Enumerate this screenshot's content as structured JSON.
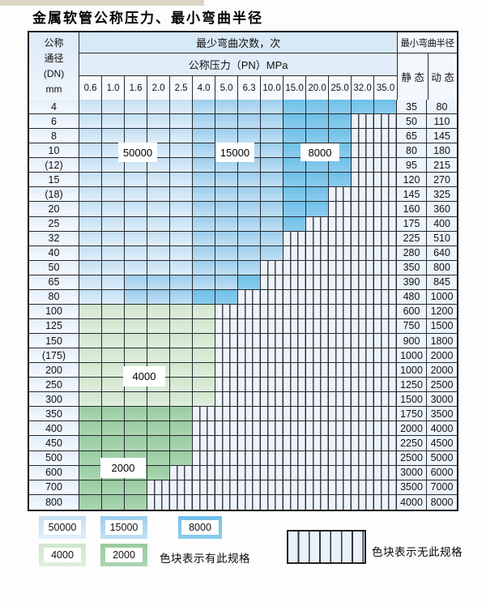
{
  "page": {
    "title": "金属软管公称压力、最小弯曲半径"
  },
  "table": {
    "header": {
      "dn_lines": [
        "公称",
        "通径",
        "(DN)",
        "mm"
      ],
      "bend_cycles": "最少弯曲次数，次",
      "pressure": "公称压力（PN）MPa",
      "pressure_values": [
        "0.6",
        "1.0",
        "1.6",
        "2.0",
        "2.5",
        "4.0",
        "5.0",
        "6.3",
        "10.0",
        "15.0",
        "20.0",
        "25.0",
        "32.0",
        "35.0"
      ],
      "min_bend_radius": "最小弯曲半径",
      "static": "静 态",
      "dynamic": "动 态"
    },
    "zone_legend_meaning": {
      "L": "50000",
      "M": "15000",
      "D": "8000",
      "G": "4000",
      "E": "2000",
      "X": "no-spec"
    },
    "rows": [
      {
        "dn": "4",
        "zones": "LLLLLMMMMDDDDD",
        "static": "35",
        "dynamic": "80"
      },
      {
        "dn": "6",
        "zones": "LLLLLMMMMDDDXX",
        "static": "50",
        "dynamic": "110"
      },
      {
        "dn": "8",
        "zones": "LLLLLMMMMDDDXX",
        "static": "65",
        "dynamic": "145"
      },
      {
        "dn": "10",
        "zones": "LLLLLMMMMDDDXX",
        "static": "80",
        "dynamic": "180"
      },
      {
        "dn": "(12)",
        "zones": "LLLLLMMMMDDDXX",
        "static": "95",
        "dynamic": "215"
      },
      {
        "dn": "15",
        "zones": "LLLLLMMMMDDDXX",
        "static": "120",
        "dynamic": "270"
      },
      {
        "dn": "(18)",
        "zones": "LLLLLMMMMDDXXX",
        "static": "145",
        "dynamic": "325"
      },
      {
        "dn": "20",
        "zones": "LLLLLMMMMDDXXX",
        "static": "160",
        "dynamic": "360"
      },
      {
        "dn": "25",
        "zones": "LLLLLMMMMDXXXX",
        "static": "175",
        "dynamic": "400"
      },
      {
        "dn": "32",
        "zones": "LLLLLMMMMXXXXX",
        "static": "225",
        "dynamic": "510"
      },
      {
        "dn": "40",
        "zones": "LLLLLMMMMXXXXX",
        "static": "280",
        "dynamic": "640"
      },
      {
        "dn": "50",
        "zones": "LLLLLMMMXXXXXX",
        "static": "350",
        "dynamic": "800"
      },
      {
        "dn": "65",
        "zones": "LLMMMMMDXXXXXX",
        "static": "390",
        "dynamic": "845"
      },
      {
        "dn": "80",
        "zones": "LLMMMDDXXXXXXX",
        "static": "480",
        "dynamic": "1000"
      },
      {
        "dn": "100",
        "zones": "GGGGGGXXXXXXXX",
        "static": "600",
        "dynamic": "1200"
      },
      {
        "dn": "125",
        "zones": "GGGGGGXXXXXXXX",
        "static": "750",
        "dynamic": "1500"
      },
      {
        "dn": "150",
        "zones": "GGGGGGXXXXXXXX",
        "static": "900",
        "dynamic": "1800"
      },
      {
        "dn": "(175)",
        "zones": "GGGGGGXXXXXXXX",
        "static": "1000",
        "dynamic": "2000"
      },
      {
        "dn": "200",
        "zones": "GGGGGGXXXXXXXX",
        "static": "1000",
        "dynamic": "2000"
      },
      {
        "dn": "250",
        "zones": "GGGGGGXXXXXXXX",
        "static": "1250",
        "dynamic": "2500"
      },
      {
        "dn": "300",
        "zones": "GGGGGGXXXXXXXX",
        "static": "1500",
        "dynamic": "3000"
      },
      {
        "dn": "350",
        "zones": "EEEEEXXXXXXXXX",
        "static": "1750",
        "dynamic": "3500"
      },
      {
        "dn": "400",
        "zones": "EEEEEXXXXXXXXX",
        "static": "2000",
        "dynamic": "4000"
      },
      {
        "dn": "450",
        "zones": "EEEEEXXXXXXXXX",
        "static": "2250",
        "dynamic": "4500"
      },
      {
        "dn": "500",
        "zones": "EEEEEXXXXXXXXX",
        "static": "2500",
        "dynamic": "5000"
      },
      {
        "dn": "600",
        "zones": "EEEEXXXXXXXXXX",
        "static": "3000",
        "dynamic": "6000"
      },
      {
        "dn": "700",
        "zones": "EEEXXXXXXXXXXX",
        "static": "3500",
        "dynamic": "7000"
      },
      {
        "dn": "800",
        "zones": "EEEXXXXXXXXXXX",
        "static": "4000",
        "dynamic": "8000"
      }
    ]
  },
  "overlays": [
    {
      "label": "50000"
    },
    {
      "label": "15000"
    },
    {
      "label": "8000"
    },
    {
      "label": "4000"
    },
    {
      "label": "2000"
    }
  ],
  "legend": {
    "swatches": [
      {
        "label": "50000",
        "zone": "L"
      },
      {
        "label": "15000",
        "zone": "M"
      },
      {
        "label": "8000",
        "zone": "D"
      },
      {
        "label": "4000",
        "zone": "G"
      },
      {
        "label": "2000",
        "zone": "E"
      }
    ],
    "has_spec_note": "色块表示有此规格",
    "no_spec_note": "色块表示无此规格"
  },
  "colors": {
    "cycles_50000_blue": "#c9e3f5",
    "cycles_15000_blue": "#a3d2ee",
    "cycles_8000_blue": "#74c2e9",
    "cycles_4000_green": "#d4e8d1",
    "cycles_2000_green": "#9bcda3",
    "no_spec_fill": "#edf3fa",
    "grid_line": "#26292e"
  }
}
